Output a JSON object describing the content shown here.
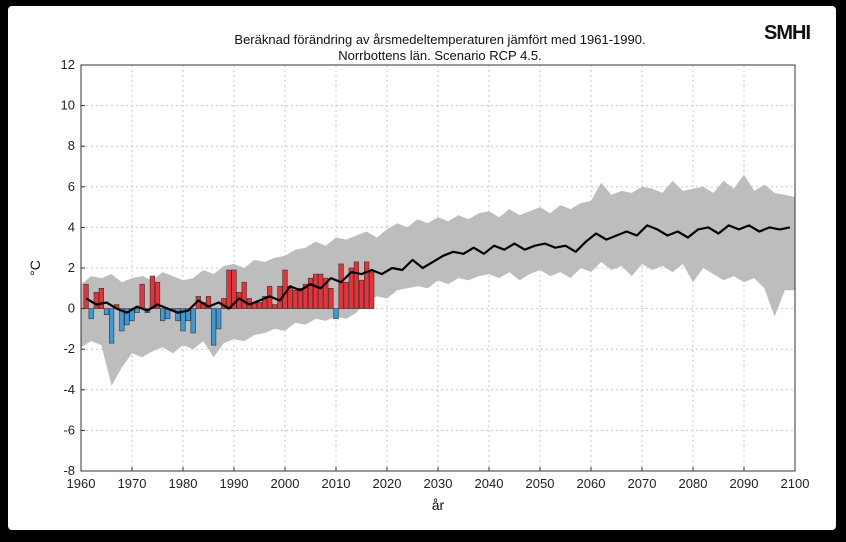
{
  "logo_text": "SMHI",
  "colors": {
    "positive_bar": "#e8323a",
    "negative_bar": "#3d9ad8",
    "range_band": "#bdbdbd",
    "mean_line": "#000000",
    "grid": "#c8c8c8"
  },
  "chart_data": {
    "type": "bar",
    "title_lines": [
      "Beräknad förändring av årsmedeltemperaturen jämfört med 1961-1990.",
      "Norrbottens län. Scenario RCP 4.5."
    ],
    "xlabel": "år",
    "ylabel": "°C",
    "xlim": [
      1960,
      2100
    ],
    "ylim": [
      -8,
      12
    ],
    "xticks": [
      1960,
      1970,
      1980,
      1990,
      2000,
      2010,
      2020,
      2030,
      2040,
      2050,
      2060,
      2070,
      2080,
      2090,
      2100
    ],
    "yticks": [
      -8,
      -6,
      -4,
      -2,
      0,
      2,
      4,
      6,
      8,
      10,
      12
    ],
    "grid": true,
    "series": [
      {
        "kind": "bar",
        "x": [
          1961,
          1962,
          1963,
          1964,
          1965,
          1966,
          1967,
          1968,
          1969,
          1970,
          1971,
          1972,
          1973,
          1974,
          1975,
          1976,
          1977,
          1978,
          1979,
          1980,
          1981,
          1982,
          1983,
          1984,
          1985,
          1986,
          1987,
          1988,
          1989,
          1990,
          1991,
          1992,
          1993,
          1994,
          1995,
          1996,
          1997,
          1998,
          1999,
          2000,
          2001,
          2002,
          2003,
          2004,
          2005,
          2006,
          2007,
          2008,
          2009,
          2010,
          2011,
          2012,
          2013,
          2014,
          2015,
          2016,
          2017
        ],
        "values": [
          1.2,
          -0.5,
          0.8,
          1.0,
          -0.3,
          -1.7,
          0.2,
          -1.1,
          -0.8,
          -0.6,
          -0.2,
          1.2,
          -0.2,
          1.6,
          1.3,
          -0.6,
          -0.5,
          0.0,
          -0.6,
          -1.1,
          -0.6,
          -1.2,
          0.6,
          0.3,
          0.6,
          -1.8,
          -1.0,
          0.5,
          1.9,
          1.9,
          0.8,
          1.3,
          0.5,
          0.3,
          0.3,
          0.6,
          1.1,
          0.2,
          1.1,
          1.9,
          1.1,
          0.9,
          1.0,
          1.2,
          1.5,
          1.7,
          1.7,
          1.5,
          1.0,
          -0.5,
          2.2,
          1.3,
          2.0,
          2.3,
          1.4,
          2.3,
          1.8
        ]
      },
      {
        "kind": "line",
        "name": "",
        "x": [
          1961,
          1963,
          1965,
          1967,
          1969,
          1971,
          1973,
          1975,
          1977,
          1979,
          1981,
          1983,
          1985,
          1987,
          1989,
          1991,
          1993,
          1995,
          1997,
          1999,
          2001,
          2003,
          2005,
          2007,
          2009,
          2011,
          2013,
          2015,
          2017,
          2019,
          2021,
          2023,
          2025,
          2027,
          2029,
          2031,
          2033,
          2035,
          2037,
          2039,
          2041,
          2043,
          2045,
          2047,
          2049,
          2051,
          2053,
          2055,
          2057,
          2059,
          2061,
          2063,
          2065,
          2067,
          2069,
          2071,
          2073,
          2075,
          2077,
          2079,
          2081,
          2083,
          2085,
          2087,
          2089,
          2091,
          2093,
          2095,
          2097,
          2099
        ],
        "values": [
          0.5,
          0.2,
          0.3,
          0.0,
          -0.2,
          0.1,
          -0.1,
          0.2,
          0.0,
          -0.2,
          -0.1,
          0.4,
          0.1,
          0.3,
          0.0,
          0.5,
          0.2,
          0.4,
          0.6,
          0.4,
          1.1,
          0.9,
          1.2,
          1.0,
          1.5,
          1.3,
          1.8,
          1.7,
          1.9,
          1.7,
          2.0,
          1.9,
          2.4,
          2.0,
          2.3,
          2.6,
          2.8,
          2.7,
          3.0,
          2.7,
          3.1,
          2.9,
          3.2,
          2.9,
          3.1,
          3.2,
          3.0,
          3.1,
          2.8,
          3.3,
          3.7,
          3.4,
          3.6,
          3.8,
          3.6,
          4.1,
          3.9,
          3.6,
          3.8,
          3.5,
          3.9,
          4.0,
          3.7,
          4.1,
          3.9,
          4.1,
          3.8,
          4.0,
          3.9,
          4.0
        ]
      },
      {
        "kind": "band",
        "x": [
          1960,
          1962,
          1964,
          1966,
          1968,
          1970,
          1972,
          1974,
          1976,
          1978,
          1980,
          1982,
          1984,
          1986,
          1988,
          1990,
          1992,
          1994,
          1996,
          1998,
          2000,
          2002,
          2004,
          2006,
          2008,
          2010,
          2012,
          2014,
          2016,
          2018,
          2020,
          2022,
          2024,
          2026,
          2028,
          2030,
          2032,
          2034,
          2036,
          2038,
          2040,
          2042,
          2044,
          2046,
          2048,
          2050,
          2052,
          2054,
          2056,
          2058,
          2060,
          2062,
          2064,
          2066,
          2068,
          2070,
          2072,
          2074,
          2076,
          2078,
          2080,
          2082,
          2084,
          2086,
          2088,
          2090,
          2092,
          2094,
          2096,
          2098,
          2100
        ],
        "upper": [
          1.2,
          1.6,
          1.5,
          1.7,
          1.3,
          1.5,
          1.6,
          1.4,
          1.8,
          1.6,
          1.4,
          1.5,
          1.9,
          1.7,
          2.1,
          2.2,
          2.0,
          2.4,
          2.3,
          2.5,
          2.6,
          2.9,
          3.0,
          3.3,
          3.1,
          3.5,
          3.4,
          3.6,
          3.8,
          3.5,
          3.9,
          4.2,
          4.0,
          4.4,
          4.2,
          4.5,
          4.3,
          4.6,
          4.4,
          4.7,
          4.8,
          4.5,
          4.9,
          4.6,
          4.8,
          5.0,
          4.7,
          5.1,
          4.9,
          5.2,
          5.3,
          6.2,
          5.6,
          5.8,
          5.7,
          6.0,
          5.9,
          5.7,
          6.3,
          5.8,
          5.9,
          6.0,
          5.7,
          6.3,
          5.9,
          6.6,
          5.8,
          6.1,
          5.7,
          5.6,
          5.5
        ],
        "lower": [
          -1.9,
          -1.6,
          -1.8,
          -3.8,
          -2.9,
          -2.2,
          -2.4,
          -2.1,
          -1.9,
          -2.2,
          -1.8,
          -2.0,
          -1.6,
          -2.4,
          -1.7,
          -1.5,
          -1.6,
          -1.3,
          -1.2,
          -1.0,
          -1.1,
          -0.7,
          -0.8,
          -0.5,
          -0.6,
          -0.4,
          -0.5,
          -0.2,
          0.4,
          0.6,
          0.5,
          0.9,
          1.0,
          1.1,
          1.0,
          1.4,
          1.2,
          1.5,
          1.4,
          1.6,
          1.7,
          1.5,
          1.8,
          1.4,
          1.7,
          1.9,
          1.6,
          1.8,
          1.5,
          2.0,
          1.8,
          2.3,
          1.9,
          2.1,
          1.6,
          2.2,
          1.9,
          2.1,
          1.8,
          2.2,
          1.3,
          2.0,
          1.7,
          1.4,
          1.6,
          1.3,
          1.5,
          1.0,
          -0.4,
          0.9,
          0.9
        ]
      }
    ]
  }
}
